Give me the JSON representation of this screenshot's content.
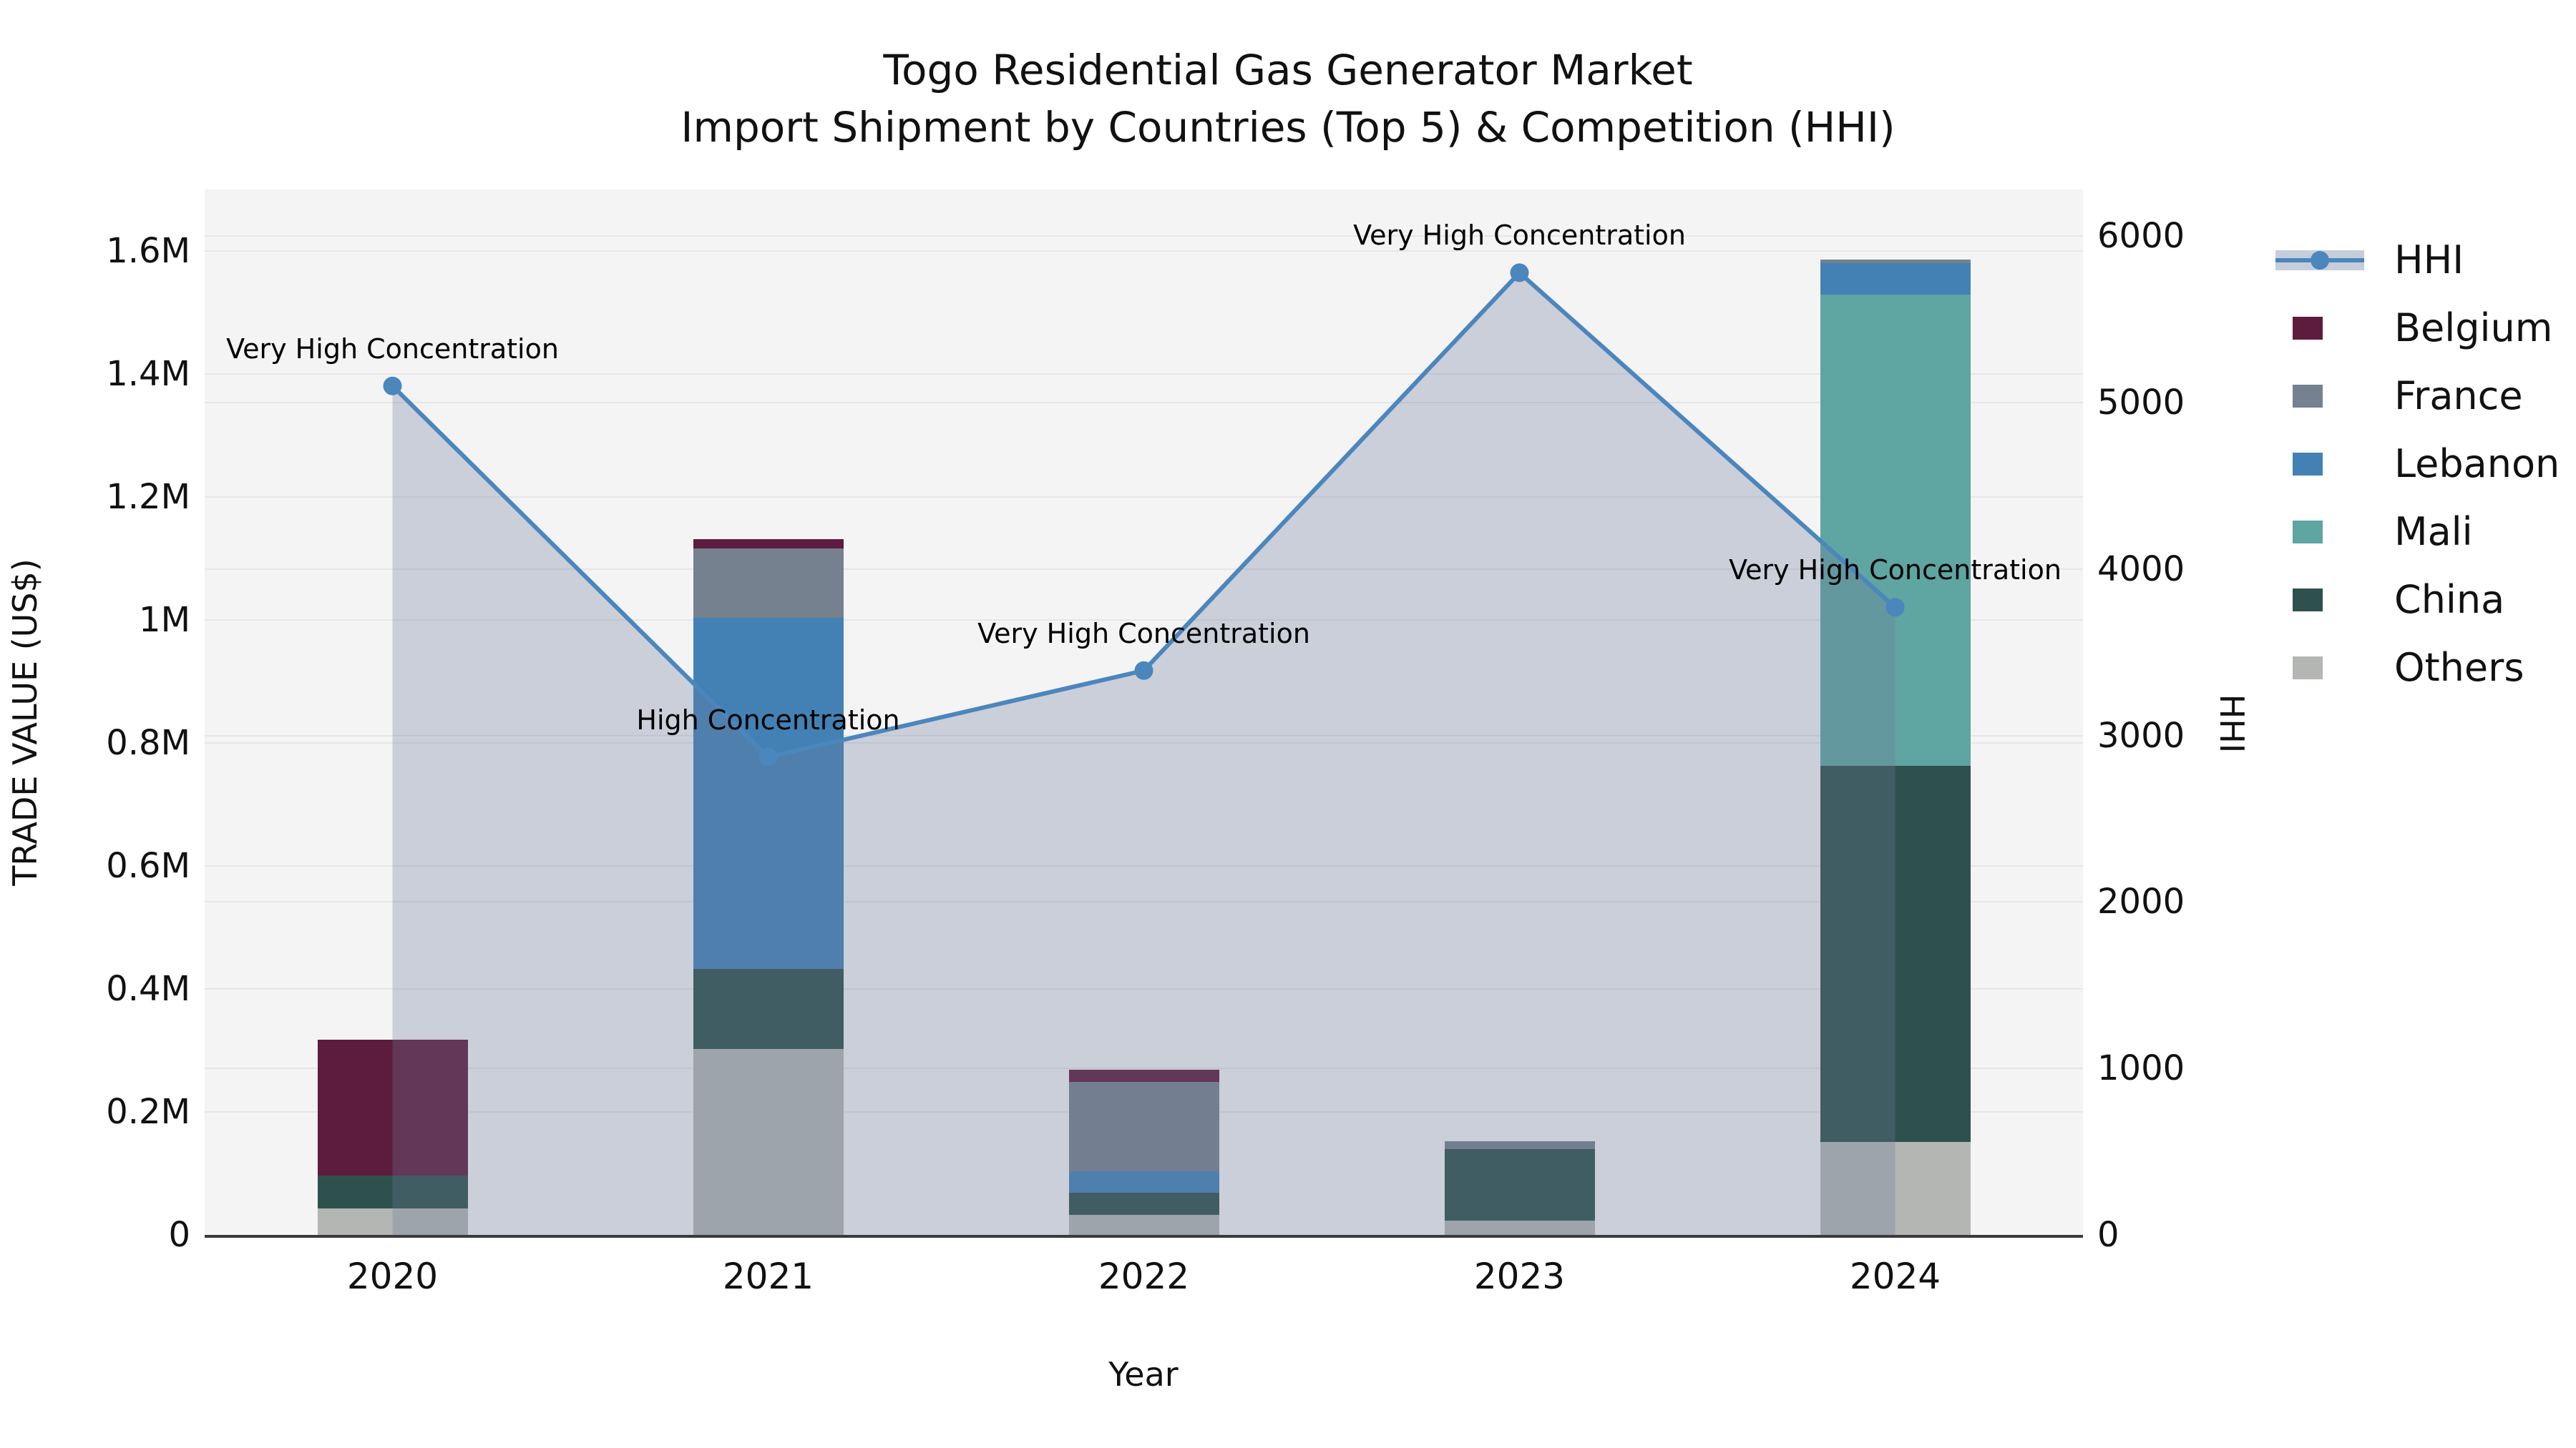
{
  "chart_data": {
    "type": "combo_stacked_bar_line_dual_axis",
    "title_line1": "Togo Residential Gas Generator Market",
    "title_line2": "Import Shipment by Countries (Top 5) & Competition (HHI)",
    "categories": [
      "2020",
      "2021",
      "2022",
      "2023",
      "2024"
    ],
    "series": [
      {
        "name": "Belgium",
        "color": "#5d1b3d",
        "values": [
          220000,
          15000,
          20000,
          0,
          0
        ]
      },
      {
        "name": "France",
        "color": "#76818f",
        "values": [
          0,
          113000,
          145000,
          12000,
          6000
        ]
      },
      {
        "name": "Lebanon",
        "color": "#4381b5",
        "values": [
          0,
          570000,
          35000,
          0,
          51000
        ]
      },
      {
        "name": "Mali",
        "color": "#5fa5a2",
        "values": [
          0,
          0,
          0,
          0,
          766000
        ]
      },
      {
        "name": "China",
        "color": "#2f514e",
        "values": [
          54000,
          131000,
          36000,
          117000,
          612000
        ]
      },
      {
        "name": "Others",
        "color": "#b4b6b4",
        "values": [
          43000,
          302000,
          33000,
          23000,
          151000
        ]
      }
    ],
    "stack_order_bottom_to_top": [
      "Others",
      "China",
      "Mali",
      "Lebanon",
      "France",
      "Belgium"
    ],
    "hhi": {
      "name": "HHI",
      "line_color": "#4b86bd",
      "area_color": "rgba(110,124,152,0.30)",
      "values": [
        5100,
        2870,
        3390,
        5780,
        3770
      ]
    },
    "annotations": [
      "Very High Concentration",
      "High Concentration",
      "Very High Concentration",
      "Very High Concentration",
      "Very High Concentration"
    ],
    "left_axis": {
      "label": "TRADE VALUE (US$)",
      "lim": [
        0,
        1700000
      ],
      "ticks": [
        {
          "value": 0,
          "label": "0"
        },
        {
          "value": 200000,
          "label": "0.2M"
        },
        {
          "value": 400000,
          "label": "0.4M"
        },
        {
          "value": 600000,
          "label": "0.6M"
        },
        {
          "value": 800000,
          "label": "0.8M"
        },
        {
          "value": 1000000,
          "label": "1M"
        },
        {
          "value": 1200000,
          "label": "1.2M"
        },
        {
          "value": 1400000,
          "label": "1.4M"
        },
        {
          "value": 1600000,
          "label": "1.6M"
        }
      ]
    },
    "right_axis": {
      "label": "HHI",
      "lim": [
        0,
        6280
      ],
      "ticks": [
        {
          "value": 0,
          "label": "0"
        },
        {
          "value": 1000,
          "label": "1000"
        },
        {
          "value": 2000,
          "label": "2000"
        },
        {
          "value": 3000,
          "label": "3000"
        },
        {
          "value": 4000,
          "label": "4000"
        },
        {
          "value": 5000,
          "label": "5000"
        },
        {
          "value": 6000,
          "label": "6000"
        }
      ]
    },
    "x_axis": {
      "label": "Year"
    },
    "legend_order": [
      "HHI",
      "Belgium",
      "France",
      "Lebanon",
      "Mali",
      "China",
      "Others"
    ],
    "style": {
      "plot_background": "#f4f4f5",
      "figure_background": "#ffffff",
      "gridline_color": "#e6e6e8",
      "axis_spine_color": "#3a3a3c",
      "bar_width_fraction_of_group": 0.4,
      "grid_on": true,
      "legend_position": "right-top-outside"
    }
  }
}
